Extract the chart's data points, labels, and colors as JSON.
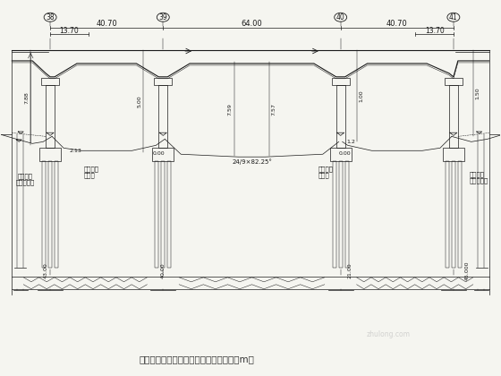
{
  "title": "特大桥连续梁平面图、纵断面图（单位：m）",
  "title_fontsize": 7.5,
  "bg_color": "#f5f5f0",
  "line_color": "#1a1a1a",
  "figure_width": 5.6,
  "figure_height": 4.2,
  "dpi": 100,
  "pier_labels": [
    "38",
    "39",
    "40",
    "41"
  ],
  "span1": 40.7,
  "span2": 64.0,
  "span3": 40.7,
  "dim_13_70": "13.70",
  "text_施工左": "施工期间\n地面处理线",
  "text_设计左": "设计地面\n开挖线",
  "text_设计右": "设计地面\n开挖线",
  "text_施工右": "施工期间\n地面处理线",
  "mid_label": "24/9×82.25°",
  "label_7_88": "7.88",
  "label_5_00": "5.00",
  "label_7_59": "7.59",
  "label_7_57": "7.57",
  "label_1_00": "1.00",
  "label_1_50": "1.50",
  "label_2_13": "2.13",
  "label_0_00a": "0.00",
  "label_1_2": "1.2",
  "label_0_00b": "0.00",
  "dim_43_00": "43.00",
  "dim_40_00": "40.00",
  "dim_21_00": "21.00",
  "dim_45_000": "45.000",
  "watermark": "zhulong.com"
}
